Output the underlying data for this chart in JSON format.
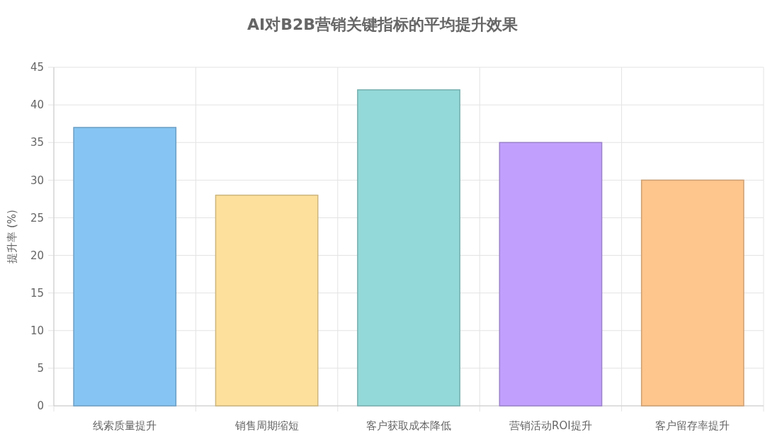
{
  "chart_data": {
    "type": "bar",
    "title": "AI对B2B营销关键指标的平均提升效果",
    "ylabel": "提升率 (%)",
    "categories": [
      "线索质量提升",
      "销售周期缩短",
      "客户获取成本降低",
      "营销活动ROI提升",
      "客户留存率提升"
    ],
    "values": [
      37,
      28,
      42,
      35,
      30
    ],
    "colors": [
      "#86c5f3",
      "#fde09b",
      "#94d9d9",
      "#c0a0fc",
      "#fec58c"
    ],
    "ylim": [
      0,
      45
    ],
    "yticks": [
      0,
      5,
      10,
      15,
      20,
      25,
      30,
      35,
      40,
      45
    ],
    "grid": true
  }
}
